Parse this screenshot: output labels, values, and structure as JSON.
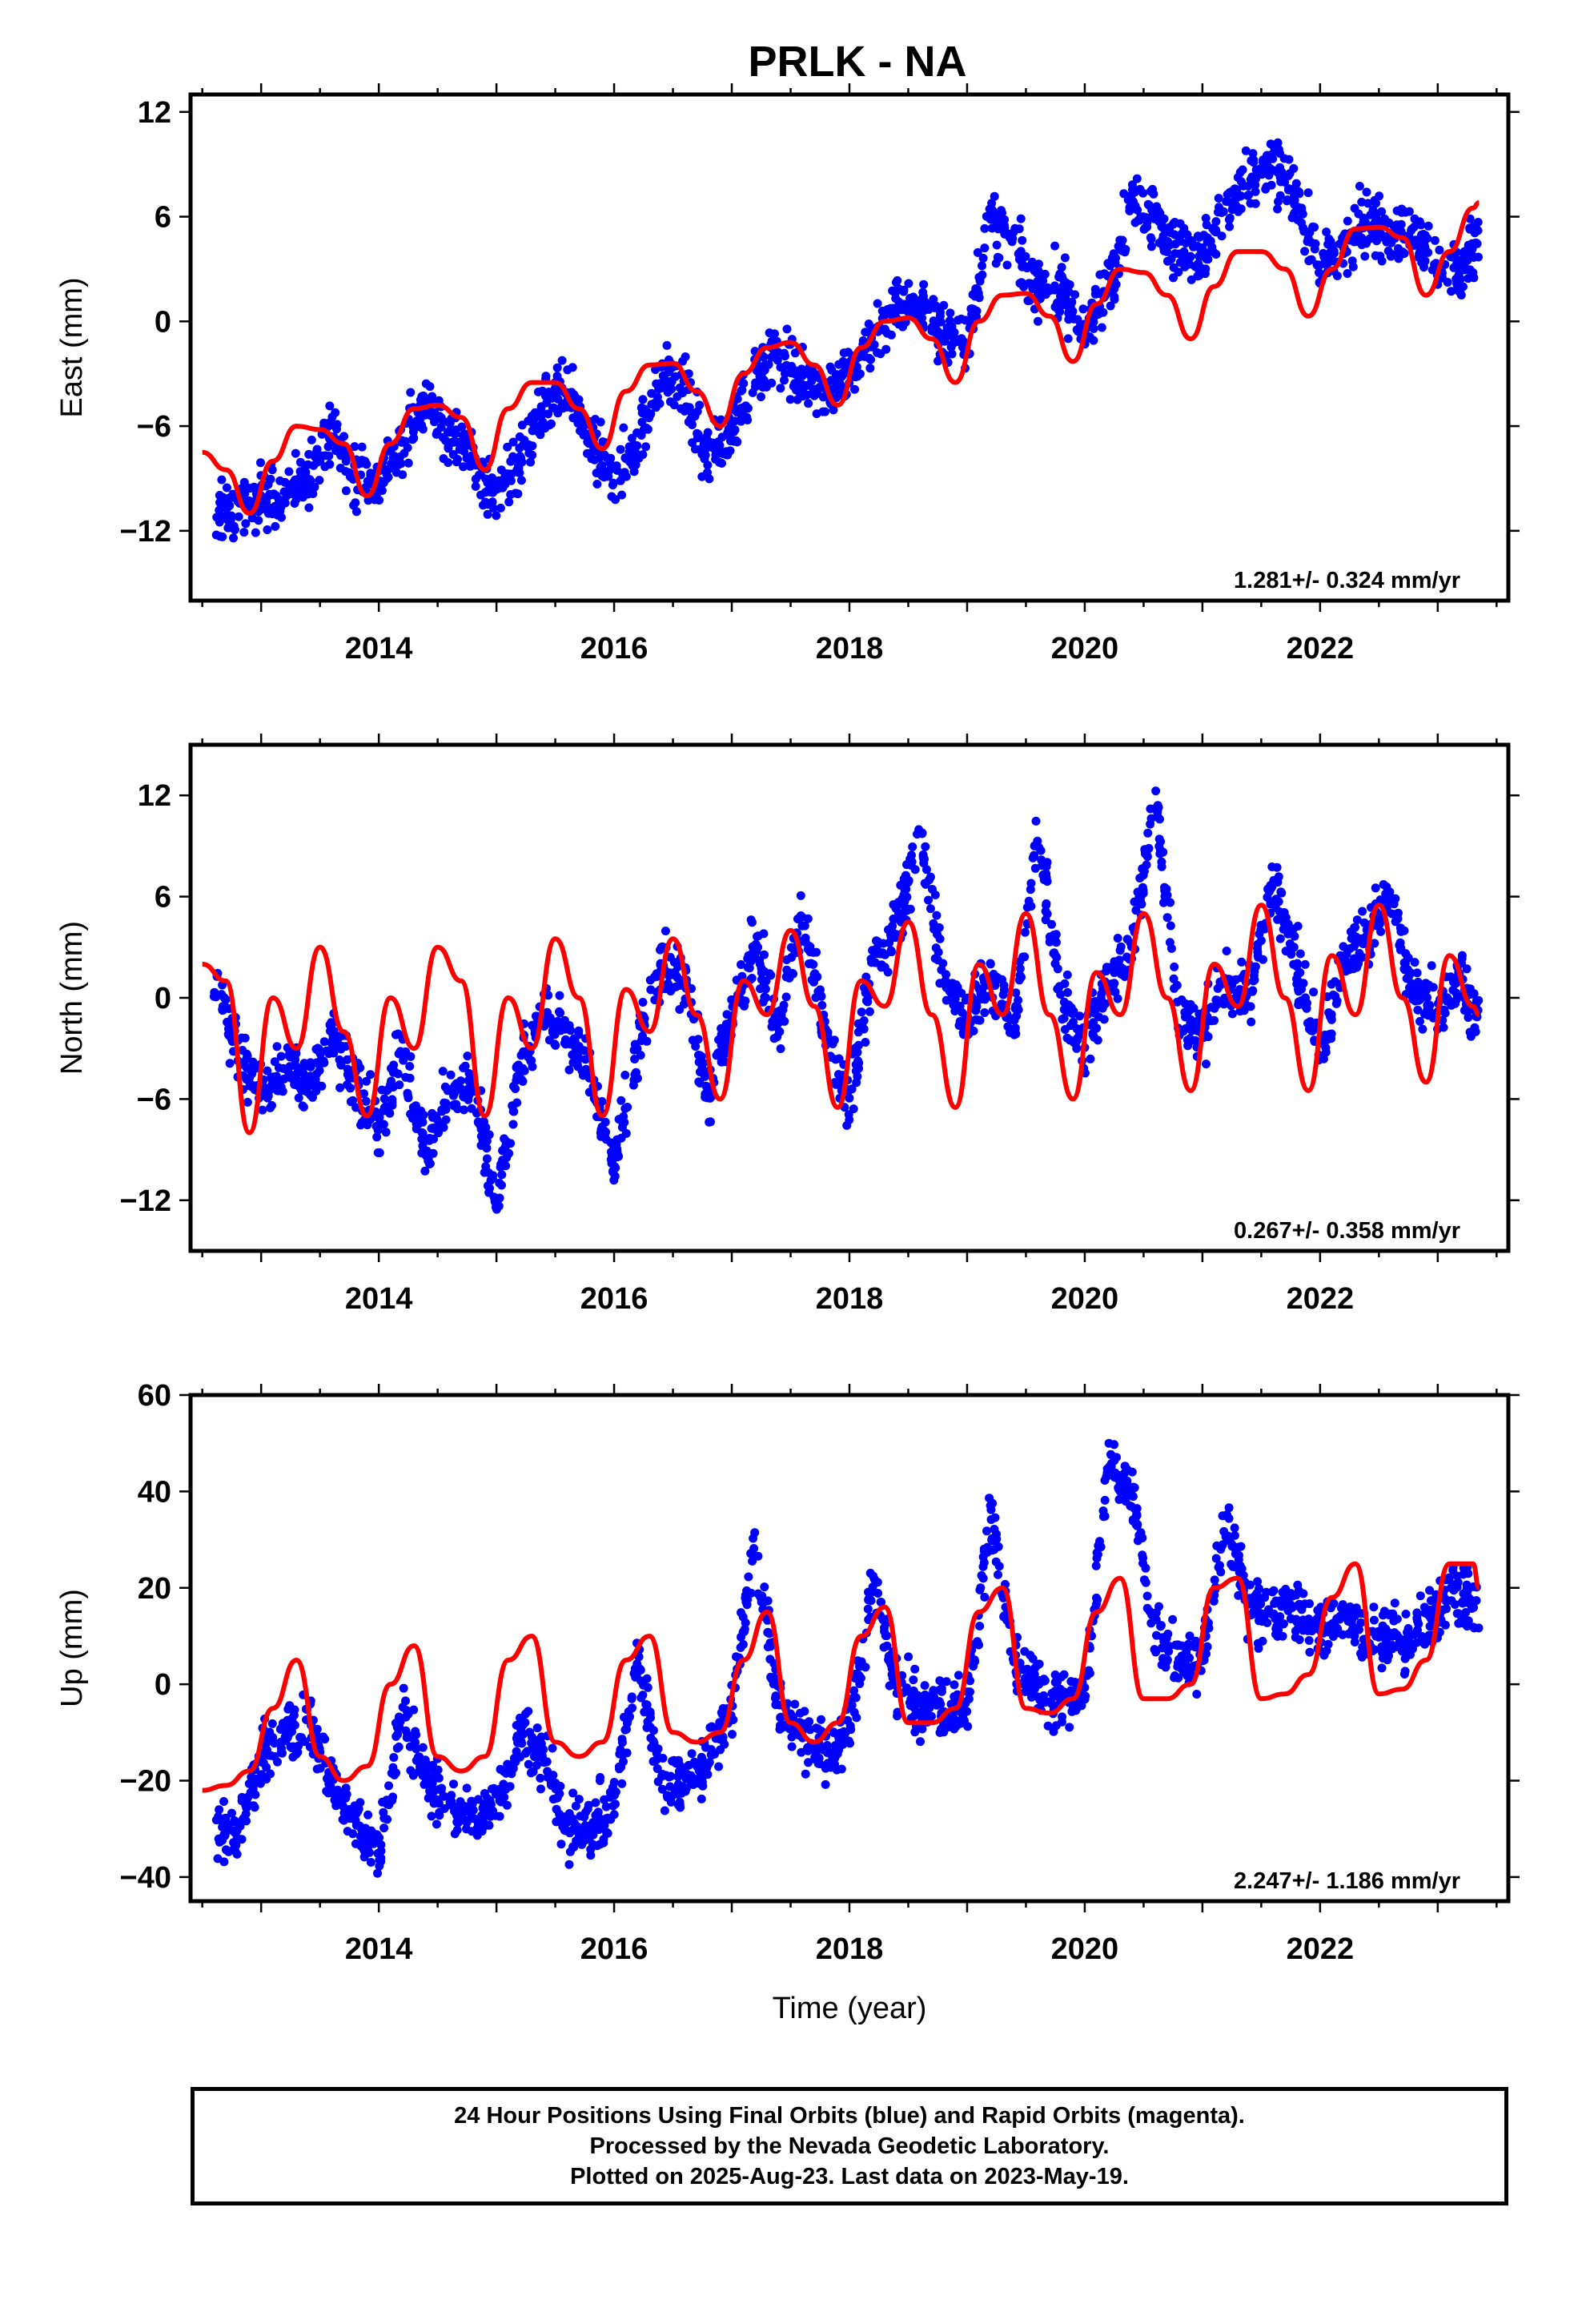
{
  "title": "PRLK - NA",
  "footer": {
    "line1": "24 Hour Positions Using Final Orbits (blue) and Rapid Orbits (magenta).",
    "line2": "Processed by the Nevada Geodetic Laboratory.",
    "line3": "Plotted on 2025-Aug-23. Last data on 2023-May-19."
  },
  "colors": {
    "data_points": "#0000ff",
    "model_curve": "#ff0000",
    "frame": "#000000"
  },
  "chart_data": [
    {
      "type": "scatter",
      "ylabel": "East (mm)",
      "xlabel": "",
      "xlim": [
        2012.4,
        2023.6
      ],
      "ylim": [
        -16,
        13
      ],
      "yticks": [
        12,
        6,
        0,
        -6,
        -12
      ],
      "xticks": [
        2014,
        2016,
        2018,
        2020,
        2022
      ],
      "rate_label": "1.281+/- 0.324 mm/yr",
      "grid": false,
      "series": [
        {
          "kind": "points",
          "color": "blue",
          "x": [
            2012.6,
            2012.8,
            2013.0,
            2013.2,
            2013.4,
            2013.6,
            2013.8,
            2014.0,
            2014.2,
            2014.4,
            2014.6,
            2014.8,
            2015.0,
            2015.2,
            2015.4,
            2015.6,
            2015.8,
            2016.0,
            2016.2,
            2016.4,
            2016.6,
            2016.8,
            2017.0,
            2017.2,
            2017.4,
            2017.6,
            2017.8,
            2018.0,
            2018.2,
            2018.4,
            2018.6,
            2018.8,
            2019.0,
            2019.2,
            2019.4,
            2019.6,
            2019.8,
            2020.0,
            2020.2,
            2020.4,
            2020.6,
            2020.8,
            2021.0,
            2021.2,
            2021.4,
            2021.6,
            2021.8,
            2022.0,
            2022.2,
            2022.4,
            2022.6,
            2022.8,
            2023.0,
            2023.2,
            2023.35
          ],
          "y": [
            -11,
            -11,
            -10,
            -10,
            -9,
            -6,
            -9,
            -9,
            -7,
            -5,
            -6,
            -8,
            -10,
            -8,
            -5,
            -4,
            -7,
            -9,
            -7,
            -3,
            -4,
            -8,
            -6,
            -3,
            -2,
            -3,
            -4,
            -3,
            -1,
            1,
            1,
            -1,
            -1,
            6,
            4,
            2,
            2,
            -1,
            2,
            7,
            6,
            4,
            4,
            6,
            8,
            9,
            7,
            3,
            4,
            6,
            5,
            5,
            3,
            3,
            5
          ]
        },
        {
          "kind": "line",
          "color": "red",
          "x": [
            2012.5,
            2012.7,
            2012.9,
            2013.1,
            2013.3,
            2013.5,
            2013.7,
            2013.9,
            2014.1,
            2014.3,
            2014.5,
            2014.7,
            2014.9,
            2015.1,
            2015.3,
            2015.5,
            2015.7,
            2015.9,
            2016.1,
            2016.3,
            2016.5,
            2016.7,
            2016.9,
            2017.1,
            2017.3,
            2017.5,
            2017.7,
            2017.9,
            2018.1,
            2018.3,
            2018.5,
            2018.7,
            2018.9,
            2019.1,
            2019.3,
            2019.5,
            2019.7,
            2019.9,
            2020.1,
            2020.3,
            2020.5,
            2020.7,
            2020.9,
            2021.1,
            2021.3,
            2021.5,
            2021.7,
            2021.9,
            2022.1,
            2022.3,
            2022.5,
            2022.7,
            2022.9,
            2023.1,
            2023.3,
            2023.35
          ],
          "y": [
            -7.5,
            -8.5,
            -11,
            -8,
            -6,
            -6.2,
            -7,
            -10,
            -7,
            -5,
            -4.8,
            -5.5,
            -8.5,
            -5,
            -3.5,
            -3.5,
            -5,
            -7.3,
            -4,
            -2.5,
            -2.4,
            -4,
            -6,
            -3,
            -1.5,
            -1.2,
            -2.5,
            -4.8,
            -1.5,
            0,
            0.2,
            -1,
            -3.5,
            0,
            1.5,
            1.6,
            0.3,
            -2.3,
            1,
            3,
            2.8,
            1.5,
            -1,
            2,
            4,
            4,
            3,
            0.3,
            3,
            5.3,
            5.4,
            4.8,
            1.5,
            4,
            6.5,
            6.8
          ]
        }
      ]
    },
    {
      "type": "scatter",
      "ylabel": "North (mm)",
      "xlabel": "",
      "xlim": [
        2012.4,
        2023.6
      ],
      "ylim": [
        -15,
        15
      ],
      "yticks": [
        12,
        6,
        0,
        -6,
        -12
      ],
      "xticks": [
        2014,
        2016,
        2018,
        2020,
        2022
      ],
      "rate_label": "0.267+/- 0.358 mm/yr",
      "grid": false,
      "series": [
        {
          "kind": "points",
          "color": "blue",
          "x": [
            2012.6,
            2012.8,
            2013.0,
            2013.2,
            2013.4,
            2013.6,
            2013.8,
            2014.0,
            2014.2,
            2014.4,
            2014.6,
            2014.8,
            2015.0,
            2015.2,
            2015.4,
            2015.6,
            2015.8,
            2016.0,
            2016.2,
            2016.4,
            2016.6,
            2016.8,
            2017.0,
            2017.2,
            2017.4,
            2017.6,
            2017.8,
            2018.0,
            2018.2,
            2018.4,
            2018.6,
            2018.8,
            2019.0,
            2019.2,
            2019.4,
            2019.6,
            2019.8,
            2020.0,
            2020.2,
            2020.4,
            2020.6,
            2020.8,
            2021.0,
            2021.2,
            2021.4,
            2021.6,
            2021.8,
            2022.0,
            2022.2,
            2022.4,
            2022.6,
            2022.8,
            2023.0,
            2023.2,
            2023.35
          ],
          "y": [
            1,
            -3,
            -6,
            -4,
            -5,
            -2,
            -5,
            -8,
            -3,
            -9,
            -6,
            -5,
            -12,
            -4,
            -1,
            -2,
            -5,
            -10,
            -3,
            2,
            1,
            -6,
            -1,
            3,
            -2,
            5,
            -2,
            -6,
            2,
            4,
            10,
            1,
            -1,
            1,
            -2,
            10,
            0,
            -3,
            1,
            3,
            12,
            -1,
            -2,
            1,
            0,
            7,
            2,
            -3,
            2,
            4,
            6,
            0,
            -1,
            1,
            -1
          ]
        },
        {
          "kind": "line",
          "color": "red",
          "x": [
            2012.5,
            2012.7,
            2012.9,
            2013.1,
            2013.3,
            2013.5,
            2013.7,
            2013.9,
            2014.1,
            2014.3,
            2014.5,
            2014.7,
            2014.9,
            2015.1,
            2015.3,
            2015.5,
            2015.7,
            2015.9,
            2016.1,
            2016.3,
            2016.5,
            2016.7,
            2016.9,
            2017.1,
            2017.3,
            2017.5,
            2017.7,
            2017.9,
            2018.1,
            2018.3,
            2018.5,
            2018.7,
            2018.9,
            2019.1,
            2019.3,
            2019.5,
            2019.7,
            2019.9,
            2020.1,
            2020.3,
            2020.5,
            2020.7,
            2020.9,
            2021.1,
            2021.3,
            2021.5,
            2021.7,
            2021.9,
            2022.1,
            2022.3,
            2022.5,
            2022.7,
            2022.9,
            2023.1,
            2023.3,
            2023.35
          ],
          "y": [
            2,
            1,
            -8,
            0,
            -3,
            3,
            -2,
            -7,
            0,
            -3,
            3,
            1,
            -7,
            0,
            -3,
            3.5,
            0,
            -7,
            0.5,
            -2,
            3.5,
            -1,
            -6,
            1,
            -1,
            4,
            -0.5,
            -6.5,
            1,
            -0.5,
            4.5,
            -1,
            -6.5,
            2,
            -1,
            5,
            -1,
            -6,
            1.5,
            -1,
            5,
            0,
            -5.5,
            2,
            -0.5,
            5.5,
            0,
            -5.5,
            2.5,
            -1,
            5.5,
            0,
            -5,
            2.5,
            -0.5,
            -1
          ]
        }
      ]
    },
    {
      "type": "scatter",
      "ylabel": "Up (mm)",
      "xlabel": "Time (year)",
      "xlim": [
        2012.4,
        2023.6
      ],
      "ylim": [
        -45,
        60
      ],
      "yticks": [
        60,
        40,
        20,
        0,
        -20,
        -40
      ],
      "xticks": [
        2014,
        2016,
        2018,
        2020,
        2022
      ],
      "rate_label": "2.247+/- 1.186 mm/yr",
      "grid": false,
      "series": [
        {
          "kind": "points",
          "color": "blue",
          "x": [
            2012.6,
            2012.8,
            2013.0,
            2013.2,
            2013.4,
            2013.6,
            2013.8,
            2014.0,
            2014.2,
            2014.4,
            2014.6,
            2014.8,
            2015.0,
            2015.2,
            2015.4,
            2015.6,
            2015.8,
            2016.0,
            2016.2,
            2016.4,
            2016.6,
            2016.8,
            2017.0,
            2017.2,
            2017.4,
            2017.6,
            2017.8,
            2018.0,
            2018.2,
            2018.4,
            2018.6,
            2018.8,
            2019.0,
            2019.2,
            2019.4,
            2019.6,
            2019.8,
            2020.0,
            2020.2,
            2020.4,
            2020.6,
            2020.8,
            2021.0,
            2021.2,
            2021.4,
            2021.6,
            2021.8,
            2022.0,
            2022.2,
            2022.4,
            2022.6,
            2022.8,
            2023.0,
            2023.2,
            2023.35
          ],
          "y": [
            -30,
            -32,
            -15,
            -10,
            -8,
            -20,
            -30,
            -35,
            -5,
            -20,
            -25,
            -28,
            -25,
            -10,
            -15,
            -30,
            -30,
            -25,
            5,
            -20,
            -20,
            -15,
            -5,
            30,
            -5,
            -10,
            -15,
            -10,
            20,
            0,
            -5,
            -5,
            -5,
            35,
            5,
            0,
            -5,
            0,
            45,
            40,
            10,
            5,
            5,
            35,
            15,
            15,
            15,
            10,
            15,
            10,
            10,
            10,
            15,
            20,
            15
          ]
        },
        {
          "kind": "line",
          "color": "red",
          "x": [
            2012.5,
            2012.7,
            2012.9,
            2013.1,
            2013.3,
            2013.5,
            2013.7,
            2013.9,
            2014.1,
            2014.3,
            2014.5,
            2014.7,
            2014.9,
            2015.1,
            2015.3,
            2015.5,
            2015.7,
            2015.9,
            2016.1,
            2016.3,
            2016.5,
            2016.7,
            2016.9,
            2017.1,
            2017.3,
            2017.5,
            2017.7,
            2017.9,
            2018.1,
            2018.3,
            2018.5,
            2018.7,
            2018.9,
            2019.1,
            2019.3,
            2019.5,
            2019.7,
            2019.9,
            2020.1,
            2020.3,
            2020.5,
            2020.7,
            2020.9,
            2021.1,
            2021.3,
            2021.5,
            2021.7,
            2021.9,
            2022.1,
            2022.3,
            2022.5,
            2022.7,
            2022.9,
            2023.1,
            2023.3,
            2023.35
          ],
          "y": [
            -22,
            -21,
            -18,
            -5,
            5,
            -15,
            -20,
            -17,
            0,
            8,
            -15,
            -18,
            -15,
            5,
            10,
            -12,
            -15,
            -12,
            5,
            10,
            -10,
            -12,
            -10,
            5,
            15,
            -8,
            -12,
            -8,
            10,
            16,
            -8,
            -8,
            -5,
            15,
            20,
            -5,
            -6,
            -3,
            15,
            22,
            -3,
            -3,
            0,
            20,
            22,
            -3,
            -2,
            2,
            18,
            25,
            -2,
            -1,
            5,
            25,
            25,
            20
          ]
        }
      ]
    }
  ]
}
